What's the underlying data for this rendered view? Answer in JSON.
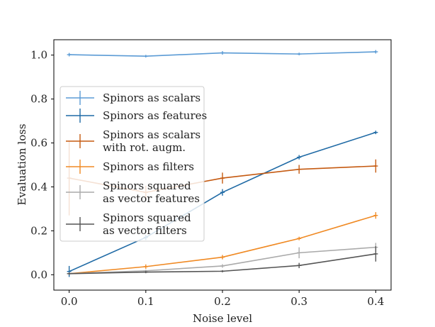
{
  "chart_data": {
    "type": "line",
    "title": "",
    "xlabel": "Noise level",
    "ylabel": "Evaluation loss",
    "x": [
      0.0,
      0.1,
      0.2,
      0.3,
      0.4
    ],
    "xticks": [
      "0.0",
      "0.1",
      "0.2",
      "0.3",
      "0.4"
    ],
    "yticks": [
      "0.0",
      "0.2",
      "0.4",
      "0.6",
      "0.8",
      "1.0"
    ],
    "xlim": [
      -0.02,
      0.42
    ],
    "ylim": [
      -0.07,
      1.07
    ],
    "legend_position": "center-left",
    "series": [
      {
        "name": "Spinors as scalars",
        "label_lines": [
          "Spinors as scalars"
        ],
        "color": "#5b9bd5",
        "values": [
          1.002,
          0.995,
          1.01,
          1.005,
          1.015
        ],
        "errors": [
          0.008,
          0.006,
          0.008,
          0.006,
          0.008
        ]
      },
      {
        "name": "Spinors as features",
        "label_lines": [
          "Spinors as features"
        ],
        "color": "#1f6aa5",
        "values": [
          0.015,
          0.17,
          0.375,
          0.535,
          0.648
        ],
        "errors": [
          0.025,
          0.012,
          0.015,
          0.01,
          0.008
        ]
      },
      {
        "name": "Spinors as scalars with rot. augm.",
        "label_lines": [
          "Spinors as scalars",
          "with rot. augm."
        ],
        "color": "#c55a11",
        "values": [
          0.44,
          0.375,
          0.44,
          0.48,
          0.495
        ],
        "errors": [
          0.17,
          0.03,
          0.025,
          0.02,
          0.03
        ]
      },
      {
        "name": "Spinors as filters",
        "label_lines": [
          "Spinors as filters"
        ],
        "color": "#f08a24",
        "values": [
          0.005,
          0.037,
          0.08,
          0.165,
          0.27
        ],
        "errors": [
          0.004,
          0.01,
          0.01,
          0.008,
          0.015
        ]
      },
      {
        "name": "Spinors squared as vector features",
        "label_lines": [
          "Spinors squared",
          "as vector features"
        ],
        "color": "#aaaaaa",
        "values": [
          0.005,
          0.018,
          0.04,
          0.1,
          0.125
        ],
        "errors": [
          0.005,
          0.005,
          0.008,
          0.025,
          0.02
        ]
      },
      {
        "name": "Spinors squared as vector filters",
        "label_lines": [
          "Spinors squared",
          "as vector filters"
        ],
        "color": "#555555",
        "values": [
          0.005,
          0.012,
          0.016,
          0.042,
          0.095
        ],
        "errors": [
          0.005,
          0.005,
          0.005,
          0.012,
          0.035
        ]
      }
    ]
  }
}
